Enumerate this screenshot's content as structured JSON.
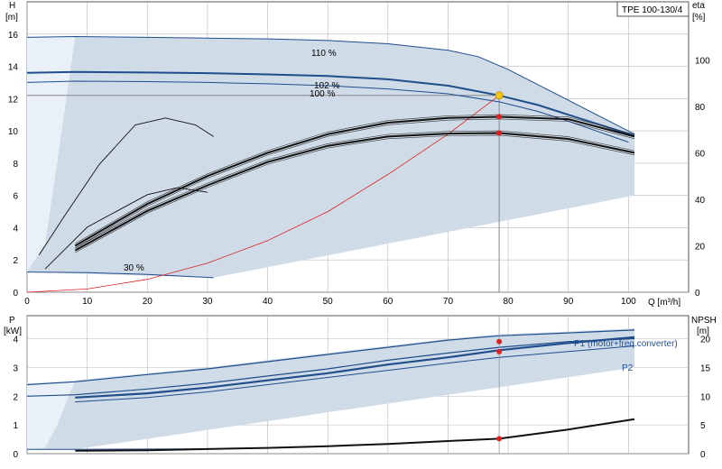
{
  "model_box": "TPE 100-130/4",
  "top_chart": {
    "y_left_label": [
      "H",
      "[m]"
    ],
    "y_right_label": [
      "eta",
      "[%]"
    ],
    "x_label": "Q [m³/h]",
    "x_ticks": [
      "0",
      "10",
      "20",
      "30",
      "40",
      "50",
      "60",
      "70",
      "80",
      "90",
      "100"
    ],
    "y_left_ticks": [
      "0",
      "2",
      "4",
      "6",
      "8",
      "10",
      "12",
      "14",
      "16"
    ],
    "y_right_ticks": [
      "0",
      "20",
      "40",
      "60",
      "80",
      "100"
    ],
    "curve_labels": [
      "110 %",
      "102 %",
      "100 %",
      "30 %"
    ]
  },
  "bottom_chart": {
    "y_left_label": [
      "P",
      "[kW]"
    ],
    "y_right_label": [
      "NPSH",
      "[m]"
    ],
    "y_left_ticks": [
      "0",
      "1",
      "2",
      "3",
      "4"
    ],
    "y_right_ticks": [
      "0",
      "5",
      "10",
      "15",
      "20"
    ],
    "series_labels": [
      "P1 (motor+freq.converter)",
      "P2"
    ]
  },
  "colors": {
    "envelope_fill": "#cfdbe7",
    "envelope_light": "#e9f0f7",
    "curve_blue": "#1f4e8c",
    "system_red": "#e02020",
    "point_red": "#e02020",
    "point_yellow": "#f5c518",
    "grid": "#b9b9b9"
  },
  "chart_data": [
    {
      "type": "line",
      "title": "",
      "xlabel": "Q [m³/h]",
      "ylabel": "H [m]",
      "y2label": "eta [%]",
      "xlim": [
        0,
        110
      ],
      "ylim": [
        0,
        18
      ],
      "y2lim": [
        0,
        125
      ],
      "grid": true,
      "duty_point": {
        "Q": 78.5,
        "H": 12.2
      },
      "series": [
        {
          "name": "110 %",
          "x": [
            0,
            8,
            20,
            30,
            40,
            50,
            60,
            70,
            75,
            80,
            90,
            101
          ],
          "y": [
            15.8,
            15.85,
            15.8,
            15.75,
            15.7,
            15.6,
            15.4,
            15.0,
            14.6,
            13.8,
            11.9,
            9.8
          ]
        },
        {
          "name": "102 %",
          "x": [
            0,
            8,
            20,
            30,
            40,
            50,
            60,
            70,
            78.5,
            85,
            90,
            101
          ],
          "y": [
            13.6,
            13.65,
            13.62,
            13.58,
            13.5,
            13.4,
            13.2,
            12.8,
            12.2,
            11.6,
            11.0,
            9.7
          ]
        },
        {
          "name": "100 %",
          "x": [
            0,
            8,
            20,
            30,
            40,
            50,
            60,
            70,
            78.5,
            85,
            90,
            100
          ],
          "y": [
            13.0,
            13.08,
            13.05,
            13.0,
            12.92,
            12.8,
            12.6,
            12.3,
            11.8,
            11.2,
            10.6,
            9.3
          ]
        },
        {
          "name": "30 %",
          "x": [
            0,
            10,
            20,
            31
          ],
          "y": [
            1.25,
            1.22,
            1.1,
            0.9
          ]
        },
        {
          "name": "",
          "x": [
            0,
            10,
            20,
            30,
            40,
            50,
            60,
            70,
            78.5
          ],
          "y": [
            0,
            0.2,
            0.8,
            1.8,
            3.2,
            5.0,
            7.3,
            9.8,
            12.2
          ]
        },
        {
          "name": "",
          "axis": "eta",
          "x": [
            8,
            20,
            30,
            40,
            50,
            60,
            70,
            78.5,
            90,
            101
          ],
          "y": [
            20,
            38,
            50,
            60,
            68,
            73,
            75,
            75.5,
            74.5,
            67
          ]
        },
        {
          "name": "",
          "axis": "eta",
          "x": [
            8,
            20,
            30,
            40,
            50,
            60,
            70,
            78.5,
            90,
            101
          ],
          "y": [
            18,
            35,
            46,
            56,
            63,
            67,
            68.3,
            68.5,
            66,
            60
          ]
        },
        {
          "name": "",
          "axis": "eta",
          "x": [
            2,
            6,
            12,
            18,
            23,
            28,
            31
          ],
          "y": [
            16,
            32,
            55,
            72,
            75,
            72,
            67
          ]
        },
        {
          "name": "",
          "axis": "eta",
          "x": [
            3,
            10,
            20,
            25,
            30
          ],
          "y": [
            10,
            28,
            42,
            45,
            43
          ]
        }
      ]
    },
    {
      "type": "line",
      "title": "",
      "xlabel": "Q [m³/h]",
      "ylabel": "P [kW]",
      "y2label": "NPSH [m]",
      "xlim": [
        0,
        110
      ],
      "ylim": [
        0,
        4.8
      ],
      "y2lim": [
        0,
        24
      ],
      "grid": true,
      "series": [
        {
          "name": "P1 (motor+freq.converter)",
          "x": [
            0,
            8,
            20,
            30,
            40,
            50,
            60,
            70,
            78.5,
            90,
            101
          ],
          "y": [
            2.4,
            2.5,
            2.75,
            2.95,
            3.2,
            3.45,
            3.7,
            3.95,
            4.1,
            4.2,
            4.3
          ]
        },
        {
          "name": "P2",
          "x": [
            0,
            8,
            20,
            30,
            40,
            50,
            60,
            70,
            78.5,
            90,
            101
          ],
          "y": [
            2.0,
            2.05,
            2.25,
            2.45,
            2.7,
            2.95,
            3.25,
            3.5,
            3.7,
            3.9,
            4.0
          ]
        },
        {
          "name": "",
          "x": [
            8,
            20,
            30,
            40,
            50,
            60,
            70,
            78.5,
            90,
            101
          ],
          "y": [
            1.95,
            2.1,
            2.3,
            2.55,
            2.8,
            3.1,
            3.35,
            3.6,
            3.85,
            4.05
          ]
        },
        {
          "name": "",
          "x": [
            8,
            20,
            30,
            40,
            50,
            60,
            70,
            78.5,
            90,
            101
          ],
          "y": [
            1.8,
            1.95,
            2.15,
            2.4,
            2.65,
            2.9,
            3.15,
            3.35,
            3.55,
            3.75
          ]
        },
        {
          "name": "",
          "x": [
            0,
            8,
            20,
            30
          ],
          "y": [
            0.15,
            0.15,
            0.16,
            0.17
          ]
        },
        {
          "name": "",
          "axis": "npsh",
          "x": [
            8,
            20,
            30,
            40,
            50,
            60,
            70,
            78.5,
            90,
            101
          ],
          "y": [
            0.5,
            0.6,
            0.8,
            1.0,
            1.3,
            1.7,
            2.2,
            2.6,
            4.2,
            6.0
          ]
        }
      ],
      "markers": {
        "Q": 78.5,
        "P1": 3.9,
        "P2": 3.55,
        "NPSH": 2.6
      }
    }
  ]
}
